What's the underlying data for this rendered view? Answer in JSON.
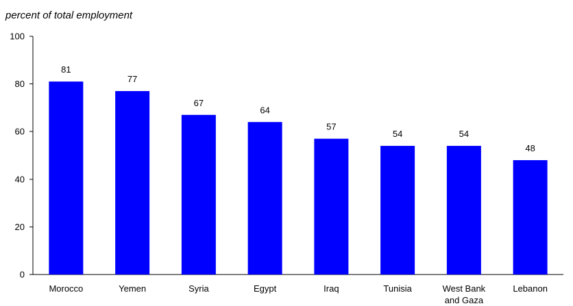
{
  "chart_data": {
    "type": "bar",
    "ylabel": "percent of total employment",
    "xlabel": "",
    "title": "",
    "categories": [
      "Morocco",
      "Yemen",
      "Syria",
      "Egypt",
      "Iraq",
      "Tunisia",
      "West Bank and Gaza",
      "Lebanon"
    ],
    "category_lines": [
      [
        "Morocco"
      ],
      [
        "Yemen"
      ],
      [
        "Syria"
      ],
      [
        "Egypt"
      ],
      [
        "Iraq"
      ],
      [
        "Tunisia"
      ],
      [
        "West Bank",
        "and Gaza"
      ],
      [
        "Lebanon"
      ]
    ],
    "values": [
      81,
      77,
      67,
      64,
      57,
      54,
      54,
      48
    ],
    "data_labels": [
      "81",
      "77",
      "67",
      "64",
      "57",
      "54",
      "54",
      "48"
    ],
    "ylim": [
      0,
      100
    ],
    "yticks": [
      0,
      20,
      40,
      60,
      80,
      100
    ],
    "ytick_labels": [
      "0",
      "20",
      "40",
      "60",
      "80",
      "100"
    ],
    "grid": false,
    "legend": "none",
    "bar_color": "#0000FF"
  }
}
